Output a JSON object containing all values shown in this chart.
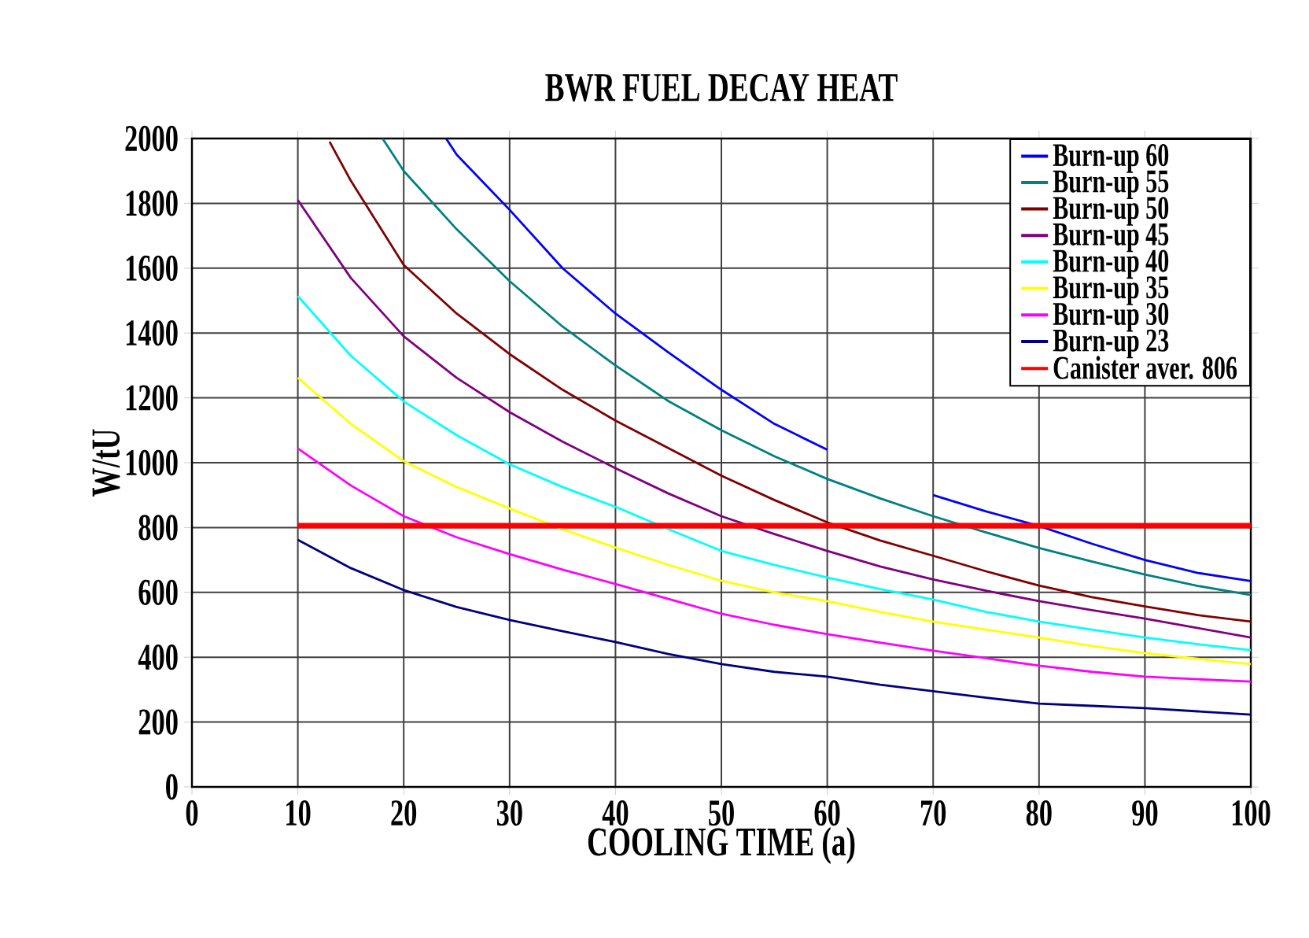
{
  "chart_data": {
    "type": "line",
    "title": "BWR FUEL DECAY HEAT",
    "xlabel": "COOLING TIME (a)",
    "ylabel": "W/tU",
    "x": [
      10,
      15,
      20,
      25,
      30,
      35,
      40,
      45,
      50,
      55,
      60,
      65,
      70,
      75,
      80,
      85,
      90,
      95,
      100
    ],
    "xlim": [
      0,
      100
    ],
    "xticks": [
      0,
      10,
      20,
      30,
      40,
      50,
      60,
      70,
      80,
      90,
      100
    ],
    "ylim": [
      0,
      2000
    ],
    "yticks": [
      0,
      200,
      400,
      600,
      800,
      1000,
      1200,
      1400,
      1600,
      1800,
      2000
    ],
    "grid": true,
    "legend": "top right",
    "marker": "none",
    "line_style": "solid",
    "series": [
      {
        "name": "Burn-up 60",
        "color": "#0000ff",
        "x": [
          24,
          25,
          30,
          35,
          40,
          45,
          50,
          55,
          60,
          65,
          70,
          75,
          80,
          85,
          90,
          95,
          100
        ],
        "values": [
          2000,
          1950,
          1780,
          1600,
          1460,
          1340,
          1225,
          1120,
          1040,
          null,
          900,
          850,
          805,
          750,
          700,
          660,
          635
        ]
      },
      {
        "name": "Burn-up 55",
        "color": "#008080",
        "x": [
          18,
          20,
          25,
          30,
          35,
          40,
          45,
          50,
          55,
          60,
          65,
          70,
          75,
          80,
          85,
          90,
          95,
          100
        ],
        "values": [
          2000,
          1900,
          1720,
          1560,
          1420,
          1300,
          1190,
          1100,
          1020,
          950,
          890,
          835,
          785,
          737,
          695,
          655,
          620,
          592
        ]
      },
      {
        "name": "Burn-up 50",
        "color": "#800000",
        "x": [
          13,
          15,
          20,
          25,
          30,
          35,
          40,
          45,
          50,
          55,
          60,
          65,
          70,
          75,
          80,
          85,
          90,
          95,
          100
        ],
        "values": [
          1990,
          1870,
          1610,
          1460,
          1335,
          1225,
          1130,
          1045,
          960,
          885,
          816,
          760,
          713,
          665,
          621,
          585,
          557,
          530,
          510
        ]
      },
      {
        "name": "Burn-up 45",
        "color": "#800080",
        "values": [
          1810,
          1570,
          1390,
          1262,
          1156,
          1065,
          983,
          905,
          835,
          780,
          728,
          680,
          640,
          605,
          573,
          545,
          519,
          490,
          461
        ]
      },
      {
        "name": "Burn-up 40",
        "color": "#00ffff",
        "values": [
          1514,
          1330,
          1189,
          1085,
          995,
          925,
          864,
          795,
          728,
          685,
          646,
          610,
          578,
          540,
          510,
          485,
          461,
          440,
          422
        ]
      },
      {
        "name": "Burn-up 35",
        "color": "#ffff00",
        "values": [
          1262,
          1120,
          1005,
          925,
          859,
          795,
          738,
          685,
          636,
          600,
          573,
          540,
          510,
          485,
          461,
          435,
          413,
          395,
          379
        ]
      },
      {
        "name": "Burn-up 30",
        "color": "#ff00ff",
        "values": [
          1044,
          930,
          835,
          770,
          718,
          670,
          626,
          580,
          534,
          500,
          471,
          445,
          420,
          397,
          374,
          355,
          340,
          332,
          325
        ]
      },
      {
        "name": "Burn-up 23",
        "color": "#000080",
        "values": [
          762,
          675,
          607,
          555,
          515,
          480,
          447,
          410,
          379,
          355,
          340,
          315,
          295,
          275,
          257,
          250,
          243,
          233,
          223
        ]
      },
      {
        "name": "Canister aver. 806",
        "color": "#ff0000",
        "x": [
          10,
          100
        ],
        "values": [
          806,
          806
        ]
      }
    ]
  }
}
